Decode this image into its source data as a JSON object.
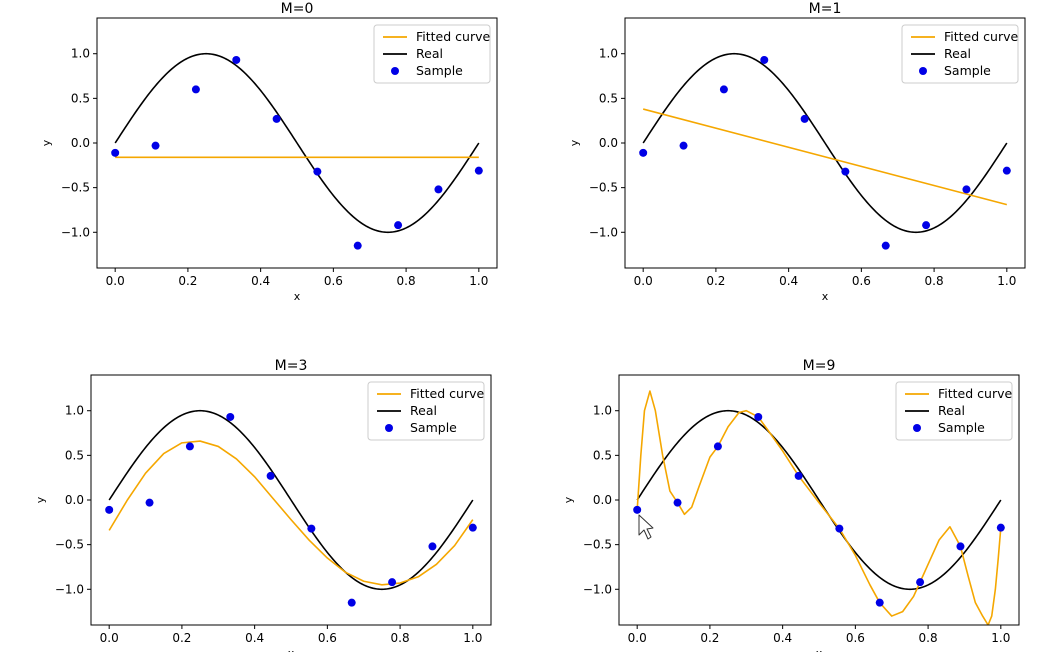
{
  "colors": {
    "fitted": "#f5a700",
    "real": "#000000",
    "sample": "#0000e6",
    "frame": "#000000"
  },
  "chart_data": [
    {
      "type": "line",
      "title": "M=0",
      "xlabel": "x",
      "ylabel": "y",
      "xlim": [
        -0.05,
        1.05
      ],
      "ylim": [
        -1.4,
        1.4
      ],
      "xticks": [
        "0.0",
        "0.2",
        "0.4",
        "0.6",
        "0.8",
        "1.0"
      ],
      "yticks": [
        "1.0",
        "0.5",
        "0.0",
        "−0.5",
        "−1.0"
      ],
      "legend": [
        "Fitted curve",
        "Real",
        "Sample"
      ],
      "legend_position": "top-right",
      "samples": {
        "x": [
          0.0,
          0.111,
          0.222,
          0.333,
          0.444,
          0.556,
          0.667,
          0.778,
          0.889,
          1.0
        ],
        "y": [
          -0.11,
          -0.03,
          0.6,
          0.93,
          0.27,
          -0.32,
          -1.15,
          -0.92,
          -0.52,
          -0.31
        ]
      },
      "fitted": {
        "x": [
          0.0,
          1.0
        ],
        "y": [
          -0.16,
          -0.16
        ]
      }
    },
    {
      "type": "line",
      "title": "M=1",
      "xlabel": "x",
      "ylabel": "y",
      "xlim": [
        -0.05,
        1.05
      ],
      "ylim": [
        -1.4,
        1.4
      ],
      "xticks": [
        "0.0",
        "0.2",
        "0.4",
        "0.6",
        "0.8",
        "1.0"
      ],
      "yticks": [
        "1.0",
        "0.5",
        "0.0",
        "−0.5",
        "−1.0"
      ],
      "legend": [
        "Fitted curve",
        "Real",
        "Sample"
      ],
      "legend_position": "top-right",
      "samples": {
        "x": [
          0.0,
          0.111,
          0.222,
          0.333,
          0.444,
          0.556,
          0.667,
          0.778,
          0.889,
          1.0
        ],
        "y": [
          -0.11,
          -0.03,
          0.6,
          0.93,
          0.27,
          -0.32,
          -1.15,
          -0.92,
          -0.52,
          -0.31
        ]
      },
      "fitted": {
        "x": [
          0.0,
          1.0
        ],
        "y": [
          0.38,
          -0.69
        ]
      }
    },
    {
      "type": "line",
      "title": "M=3",
      "xlabel": "x",
      "ylabel": "y",
      "xlim": [
        -0.05,
        1.05
      ],
      "ylim": [
        -1.4,
        1.4
      ],
      "xticks": [
        "0.0",
        "0.2",
        "0.4",
        "0.6",
        "0.8",
        "1.0"
      ],
      "yticks": [
        "1.0",
        "0.5",
        "0.0",
        "−0.5",
        "−1.0"
      ],
      "legend": [
        "Fitted curve",
        "Real",
        "Sample"
      ],
      "legend_position": "top-right",
      "samples": {
        "x": [
          0.0,
          0.111,
          0.222,
          0.333,
          0.444,
          0.556,
          0.667,
          0.778,
          0.889,
          1.0
        ],
        "y": [
          -0.11,
          -0.03,
          0.6,
          0.93,
          0.27,
          -0.32,
          -1.15,
          -0.92,
          -0.52,
          -0.31
        ]
      },
      "fitted": {
        "x": [
          0.0,
          0.05,
          0.1,
          0.15,
          0.2,
          0.25,
          0.3,
          0.35,
          0.4,
          0.45,
          0.5,
          0.55,
          0.6,
          0.65,
          0.7,
          0.75,
          0.8,
          0.85,
          0.9,
          0.95,
          1.0
        ],
        "y": [
          -0.34,
          0.0,
          0.3,
          0.52,
          0.64,
          0.66,
          0.6,
          0.46,
          0.26,
          0.02,
          -0.22,
          -0.45,
          -0.65,
          -0.81,
          -0.91,
          -0.95,
          -0.93,
          -0.86,
          -0.72,
          -0.51,
          -0.22
        ]
      }
    },
    {
      "type": "line",
      "title": "M=9",
      "xlabel": "x",
      "ylabel": "y",
      "xlim": [
        -0.05,
        1.05
      ],
      "ylim": [
        -1.4,
        1.4
      ],
      "xticks": [
        "0.0",
        "0.2",
        "0.4",
        "0.6",
        "0.8",
        "1.0"
      ],
      "yticks": [
        "1.0",
        "0.5",
        "0.0",
        "−0.5",
        "−1.0"
      ],
      "legend": [
        "Fitted curve",
        "Real",
        "Sample"
      ],
      "legend_position": "top-right",
      "samples": {
        "x": [
          0.0,
          0.111,
          0.222,
          0.333,
          0.444,
          0.556,
          0.667,
          0.778,
          0.889,
          1.0
        ],
        "y": [
          -0.11,
          -0.03,
          0.6,
          0.93,
          0.27,
          -0.32,
          -1.15,
          -0.92,
          -0.52,
          -0.31
        ]
      },
      "fitted": {
        "x": [
          0.0,
          0.01,
          0.02,
          0.035,
          0.05,
          0.07,
          0.09,
          0.111,
          0.13,
          0.15,
          0.17,
          0.2,
          0.222,
          0.25,
          0.28,
          0.3,
          0.333,
          0.36,
          0.4,
          0.444,
          0.5,
          0.556,
          0.6,
          0.64,
          0.667,
          0.7,
          0.73,
          0.76,
          0.778,
          0.8,
          0.83,
          0.86,
          0.889,
          0.91,
          0.93,
          0.95,
          0.965,
          0.975,
          0.985,
          0.993,
          1.0
        ],
        "y": [
          -0.11,
          0.5,
          1.0,
          1.22,
          1.0,
          0.5,
          0.1,
          -0.03,
          -0.16,
          -0.08,
          0.15,
          0.48,
          0.6,
          0.82,
          0.98,
          1.0,
          0.93,
          0.78,
          0.55,
          0.27,
          -0.03,
          -0.32,
          -0.62,
          -0.95,
          -1.15,
          -1.3,
          -1.25,
          -1.08,
          -0.92,
          -0.72,
          -0.45,
          -0.3,
          -0.52,
          -0.85,
          -1.15,
          -1.3,
          -1.4,
          -1.3,
          -1.0,
          -0.65,
          -0.31
        ]
      }
    }
  ]
}
